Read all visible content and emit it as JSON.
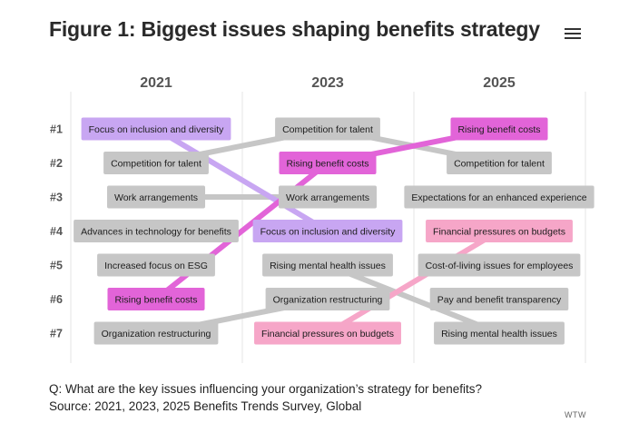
{
  "page": {
    "title": "Figure 1: Biggest issues shaping benefits strategy",
    "question": "Q: What are the key issues influencing your organization’s strategy for benefits?",
    "source": "Source: 2021, 2023, 2025 Benefits Trends Survey, Global",
    "brand": "WTW"
  },
  "colors": {
    "gray": "#c6c6c6",
    "lavender": "#c8a6f2",
    "magenta": "#e264d8",
    "pink": "#f6a6c8",
    "gridline": "#e6e6e6",
    "label": "#555555"
  },
  "chart_data": {
    "type": "bump",
    "title": "Figure 1: Biggest issues shaping benefits strategy",
    "years": [
      "2021",
      "2023",
      "2025"
    ],
    "rank_labels": [
      "#1",
      "#2",
      "#3",
      "#4",
      "#5",
      "#6",
      "#7"
    ],
    "columns": [
      {
        "year": "2021",
        "items": [
          {
            "rank": 1,
            "label": "Focus on inclusion and diversity",
            "highlight": "lavender"
          },
          {
            "rank": 2,
            "label": "Competition for talent",
            "highlight": "gray"
          },
          {
            "rank": 3,
            "label": "Work arrangements",
            "highlight": "gray"
          },
          {
            "rank": 4,
            "label": "Advances in technology for benefits",
            "highlight": "gray"
          },
          {
            "rank": 5,
            "label": "Increased focus on ESG",
            "highlight": "gray"
          },
          {
            "rank": 6,
            "label": "Rising benefit costs",
            "highlight": "magenta"
          },
          {
            "rank": 7,
            "label": "Organization restructuring",
            "highlight": "gray"
          }
        ]
      },
      {
        "year": "2023",
        "items": [
          {
            "rank": 1,
            "label": "Competition for talent",
            "highlight": "gray"
          },
          {
            "rank": 2,
            "label": "Rising benefit costs",
            "highlight": "magenta"
          },
          {
            "rank": 3,
            "label": "Work arrangements",
            "highlight": "gray"
          },
          {
            "rank": 4,
            "label": "Focus on inclusion and diversity",
            "highlight": "lavender"
          },
          {
            "rank": 5,
            "label": "Rising mental health issues",
            "highlight": "gray"
          },
          {
            "rank": 6,
            "label": "Organization restructuring",
            "highlight": "gray"
          },
          {
            "rank": 7,
            "label": "Financial pressures on budgets",
            "highlight": "pink"
          }
        ]
      },
      {
        "year": "2025",
        "items": [
          {
            "rank": 1,
            "label": "Rising benefit costs",
            "highlight": "magenta"
          },
          {
            "rank": 2,
            "label": "Competition for talent",
            "highlight": "gray"
          },
          {
            "rank": 3,
            "label": "Expectations for an enhanced experience",
            "highlight": "gray"
          },
          {
            "rank": 4,
            "label": "Financial pressures on budgets",
            "highlight": "pink"
          },
          {
            "rank": 5,
            "label": "Cost-of-living issues for employees",
            "highlight": "gray"
          },
          {
            "rank": 6,
            "label": "Pay and benefit transparency",
            "highlight": "gray"
          },
          {
            "rank": 7,
            "label": "Rising mental health issues",
            "highlight": "gray"
          }
        ]
      }
    ],
    "connections": [
      {
        "issue": "Focus on inclusion and diversity",
        "ranks": {
          "2021": 1,
          "2023": 4
        },
        "color": "lavender"
      },
      {
        "issue": "Competition for talent",
        "ranks": {
          "2021": 2,
          "2023": 1,
          "2025": 2
        },
        "color": "gray"
      },
      {
        "issue": "Work arrangements",
        "ranks": {
          "2021": 3,
          "2023": 3
        },
        "color": "gray"
      },
      {
        "issue": "Rising benefit costs",
        "ranks": {
          "2021": 6,
          "2023": 2,
          "2025": 1
        },
        "color": "magenta"
      },
      {
        "issue": "Organization restructuring",
        "ranks": {
          "2021": 7,
          "2023": 6
        },
        "color": "gray"
      },
      {
        "issue": "Financial pressures on budgets",
        "ranks": {
          "2023": 7,
          "2025": 4
        },
        "color": "pink"
      },
      {
        "issue": "Rising mental health issues",
        "ranks": {
          "2023": 5,
          "2025": 7
        },
        "color": "gray"
      }
    ]
  }
}
